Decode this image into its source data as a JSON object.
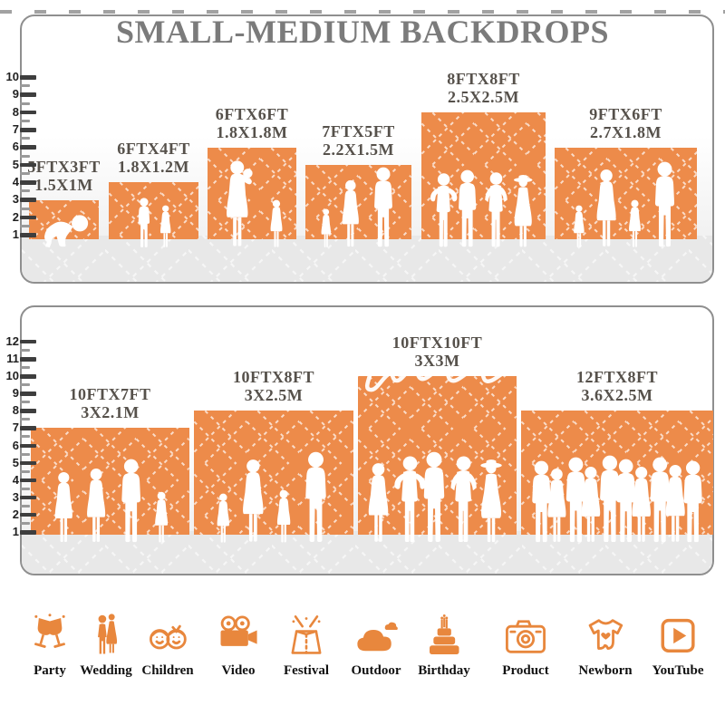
{
  "accent_color": "#ED8B4A",
  "icon_color": "#E8873D",
  "title": "SMALL-MEDIUM BACKDROPS",
  "top_panel": {
    "axis_ticks": [
      "1",
      "2",
      "3",
      "4",
      "5",
      "6",
      "7",
      "8",
      "9",
      "10"
    ],
    "blocks": [
      {
        "size_ft": "5FTX3FT",
        "size_m": "1.5X1M",
        "height_units": 3,
        "people": [
          "baby"
        ]
      },
      {
        "size_ft": "6FTX4FT",
        "size_m": "1.8X1.2M",
        "height_units": 4,
        "people": [
          "boy",
          "girl"
        ]
      },
      {
        "size_ft": "6FTX6FT",
        "size_m": "1.8X1.8M",
        "height_units": 6,
        "people": [
          "woman-baby",
          "girl"
        ]
      },
      {
        "size_ft": "7FTX5FT",
        "size_m": "2.2X1.5M",
        "height_units": 5,
        "people": [
          "girl",
          "woman",
          "man"
        ]
      },
      {
        "size_ft": "8FTX8FT",
        "size_m": "2.5X2.5M",
        "height_units": 8,
        "people": [
          "man-armsup",
          "man",
          "man-hips",
          "woman-hat"
        ]
      },
      {
        "size_ft": "9FTX6FT",
        "size_m": "2.7X1.8M",
        "height_units": 6,
        "people": [
          "girl",
          "woman",
          "girl",
          "man"
        ]
      }
    ]
  },
  "bottom_panel": {
    "axis_ticks": [
      "1",
      "2",
      "3",
      "4",
      "5",
      "6",
      "7",
      "8",
      "9",
      "10",
      "11",
      "12"
    ],
    "blocks": [
      {
        "size_ft": "10FTX7FT",
        "size_m": "3X2.1M",
        "height_units": 7,
        "people": [
          "woman",
          "woman",
          "man",
          "girl"
        ]
      },
      {
        "size_ft": "10FTX8FT",
        "size_m": "3X2.5M",
        "height_units": 8,
        "people": [
          "girl",
          "woman",
          "girl",
          "man"
        ]
      },
      {
        "size_ft": "10FTX10FT",
        "size_m": "3X3M",
        "height_units": 10,
        "people": [
          "woman",
          "man-armsup",
          "man",
          "man-hips",
          "woman-hat"
        ]
      },
      {
        "size_ft": "12FTX8FT",
        "size_m": "3.6X2.5M",
        "height_units": 8,
        "people": [
          "man",
          "woman",
          "man",
          "woman",
          "man",
          "man",
          "woman",
          "man",
          "woman",
          "man"
        ]
      }
    ]
  },
  "categories": [
    {
      "label": "Party",
      "icon": "party-icon"
    },
    {
      "label": "Wedding",
      "icon": "wedding-icon"
    },
    {
      "label": "Children",
      "icon": "children-icon"
    },
    {
      "label": "Video",
      "icon": "video-icon"
    },
    {
      "label": "Festival",
      "icon": "festival-icon"
    },
    {
      "label": "Outdoor",
      "icon": "outdoor-icon"
    },
    {
      "label": "Birthday",
      "icon": "birthday-icon"
    },
    {
      "label": "Product",
      "icon": "product-icon"
    },
    {
      "label": "Newborn",
      "icon": "newborn-icon"
    },
    {
      "label": "YouTube",
      "icon": "youtube-icon"
    }
  ]
}
